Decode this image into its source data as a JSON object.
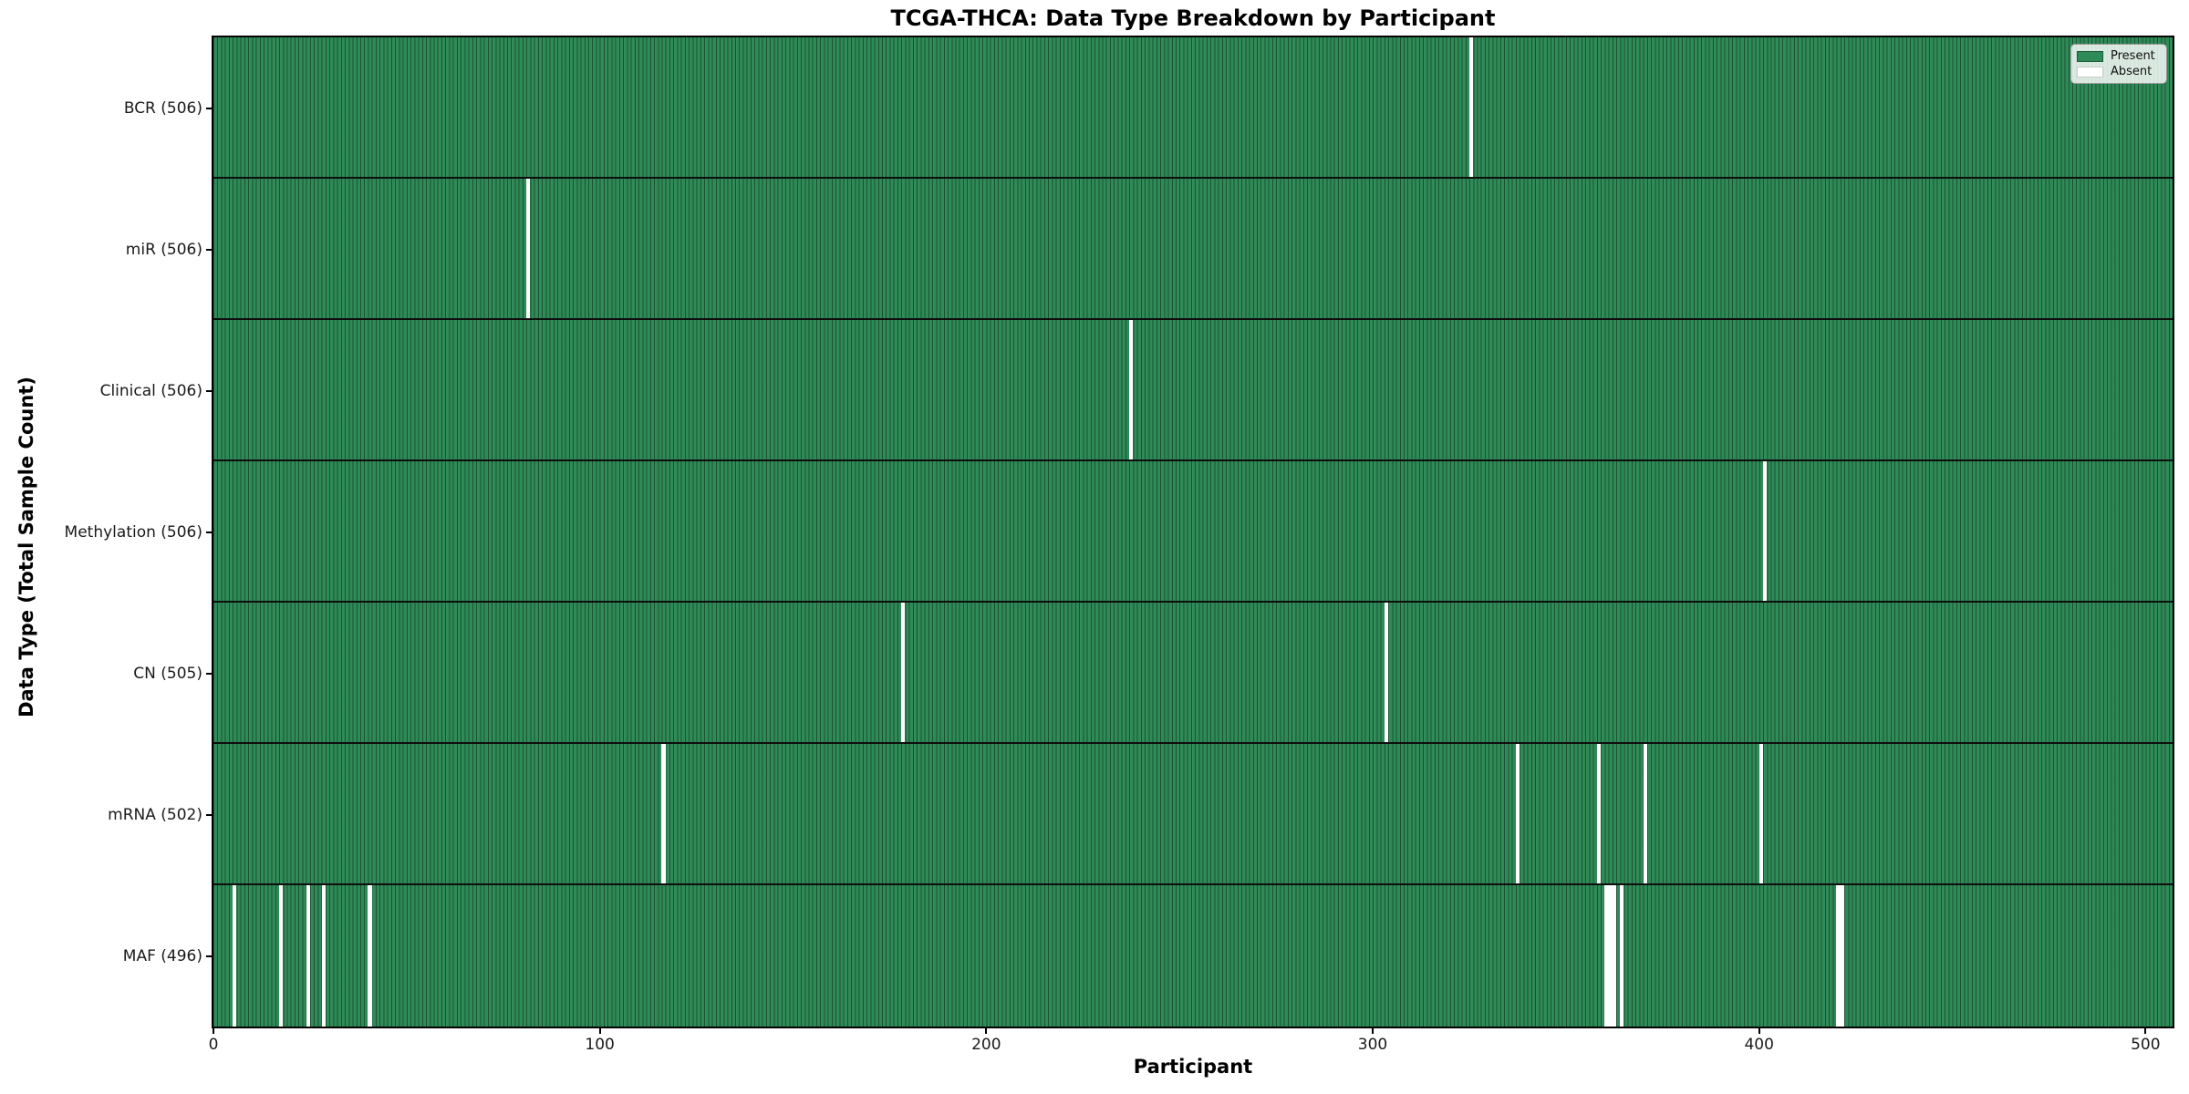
{
  "title": "TCGA-THCA: Data Type Breakdown by Participant",
  "axes": {
    "xlabel": "Participant",
    "ylabel": "Data Type (Total Sample Count)"
  },
  "legend": {
    "present_label": "Present",
    "absent_label": "Absent"
  },
  "colors": {
    "present": "#2e8b57",
    "absent": "#ffffff",
    "bar_edge": "#17472e",
    "row_divider": "#0e0e0e"
  },
  "chart_data": {
    "type": "heatmap",
    "title": "TCGA-THCA: Data Type Breakdown by Participant",
    "xlabel": "Participant",
    "ylabel": "Data Type (Total Sample Count)",
    "n_participants": 507,
    "x_ticks": [
      0,
      100,
      200,
      300,
      400,
      500
    ],
    "xlim": [
      0,
      507
    ],
    "grid": false,
    "legend_position": "upper right",
    "legend_entries": [
      {
        "label": "Present",
        "color": "#2e8b57"
      },
      {
        "label": "Absent",
        "color": "#ffffff"
      }
    ],
    "rows": [
      {
        "label": "BCR (506)",
        "data_type": "BCR",
        "present_count": 506,
        "absent_participants": [
          325
        ]
      },
      {
        "label": "miR (506)",
        "data_type": "miR",
        "present_count": 506,
        "absent_participants": [
          81
        ]
      },
      {
        "label": "Clinical (506)",
        "data_type": "Clinical",
        "present_count": 506,
        "absent_participants": [
          237
        ]
      },
      {
        "label": "Methylation (506)",
        "data_type": "Methylation",
        "present_count": 506,
        "absent_participants": [
          401
        ]
      },
      {
        "label": "CN (505)",
        "data_type": "CN",
        "present_count": 505,
        "absent_participants": [
          178,
          303
        ]
      },
      {
        "label": "mRNA (502)",
        "data_type": "mRNA",
        "present_count": 502,
        "absent_participants": [
          116,
          337,
          358,
          370,
          400
        ]
      },
      {
        "label": "MAF (496)",
        "data_type": "MAF",
        "present_count": 496,
        "absent_participants": [
          5,
          17,
          24,
          28,
          40,
          360,
          361,
          362,
          364,
          420,
          421
        ]
      }
    ]
  }
}
